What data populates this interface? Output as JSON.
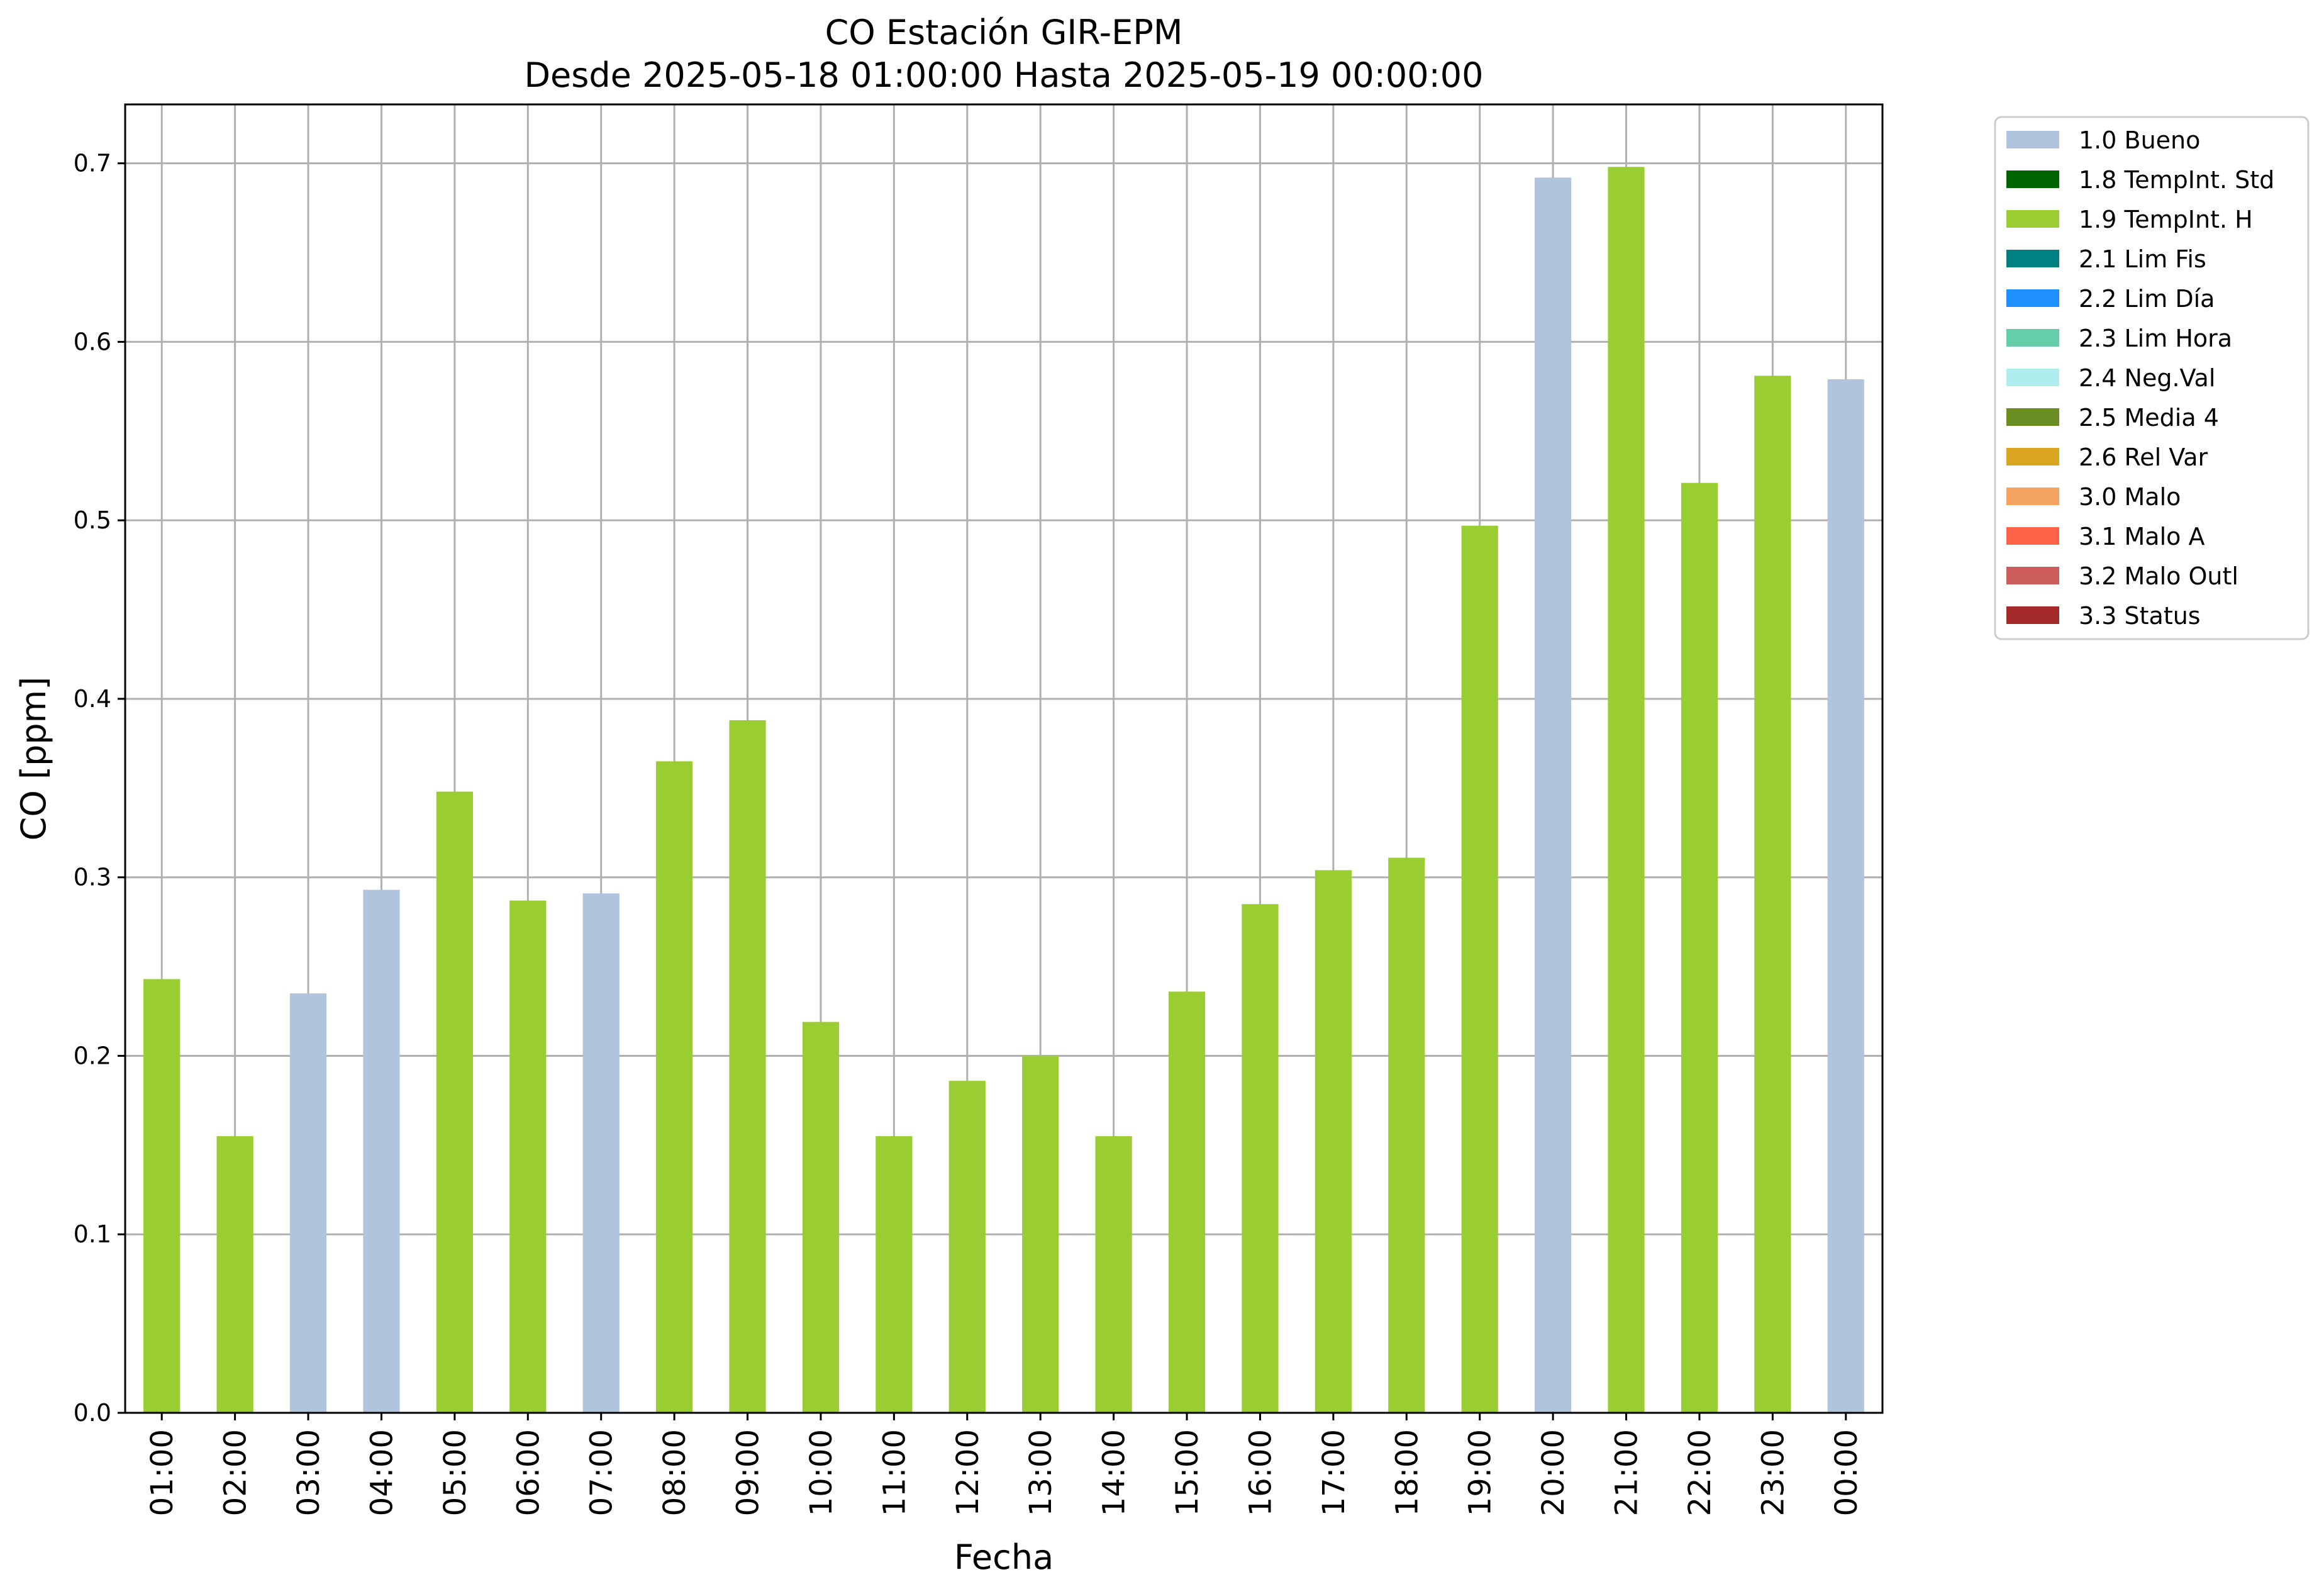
{
  "chart_data": {
    "type": "bar",
    "title": "CO Estación GIR-EPM",
    "subtitle": "Desde 2025-05-18 01:00:00 Hasta 2025-05-19 00:00:00",
    "xlabel": "Fecha",
    "ylabel": "CO [ppm]",
    "ylim": [
      0,
      0.733
    ],
    "yticks": [
      "0.0",
      "0.1",
      "0.2",
      "0.3",
      "0.4",
      "0.5",
      "0.6",
      "0.7"
    ],
    "grid": true,
    "legend_position": "outside top-right",
    "categories": [
      "01:00",
      "02:00",
      "03:00",
      "04:00",
      "05:00",
      "06:00",
      "07:00",
      "08:00",
      "09:00",
      "10:00",
      "11:00",
      "12:00",
      "13:00",
      "14:00",
      "15:00",
      "16:00",
      "17:00",
      "18:00",
      "19:00",
      "20:00",
      "21:00",
      "22:00",
      "23:00",
      "00:00"
    ],
    "values": [
      0.243,
      0.155,
      0.235,
      0.293,
      0.348,
      0.287,
      0.291,
      0.365,
      0.388,
      0.219,
      0.155,
      0.186,
      0.2,
      0.155,
      0.236,
      0.285,
      0.304,
      0.311,
      0.497,
      0.692,
      0.698,
      0.521,
      0.581,
      0.579
    ],
    "flags": [
      "1.9 TempInt. H",
      "1.9 TempInt. H",
      "1.0 Bueno",
      "1.0 Bueno",
      "1.9 TempInt. H",
      "1.9 TempInt. H",
      "1.0 Bueno",
      "1.9 TempInt. H",
      "1.9 TempInt. H",
      "1.9 TempInt. H",
      "1.9 TempInt. H",
      "1.9 TempInt. H",
      "1.9 TempInt. H",
      "1.9 TempInt. H",
      "1.9 TempInt. H",
      "1.9 TempInt. H",
      "1.9 TempInt. H",
      "1.9 TempInt. H",
      "1.9 TempInt. H",
      "1.0 Bueno",
      "1.9 TempInt. H",
      "1.9 TempInt. H",
      "1.9 TempInt. H",
      "1.0 Bueno"
    ],
    "legend": [
      {
        "label": "1.0 Bueno",
        "color": "#b0c4de"
      },
      {
        "label": "1.8 TempInt. Std",
        "color": "#006400"
      },
      {
        "label": "1.9 TempInt. H",
        "color": "#9acd32"
      },
      {
        "label": "2.1 Lim Fis",
        "color": "#008080"
      },
      {
        "label": "2.2 Lim Día",
        "color": "#1e90ff"
      },
      {
        "label": "2.3 Lim Hora",
        "color": "#66cdaa"
      },
      {
        "label": "2.4 Neg.Val",
        "color": "#afeeee"
      },
      {
        "label": "2.5 Media 4",
        "color": "#6b8e23"
      },
      {
        "label": "2.6 Rel Var",
        "color": "#daa520"
      },
      {
        "label": "3.0 Malo",
        "color": "#f4a460"
      },
      {
        "label": "3.1 Malo A",
        "color": "#ff6347"
      },
      {
        "label": "3.2 Malo Outl",
        "color": "#cd5c5c"
      },
      {
        "label": "3.3 Status",
        "color": "#a52a2a"
      }
    ]
  }
}
